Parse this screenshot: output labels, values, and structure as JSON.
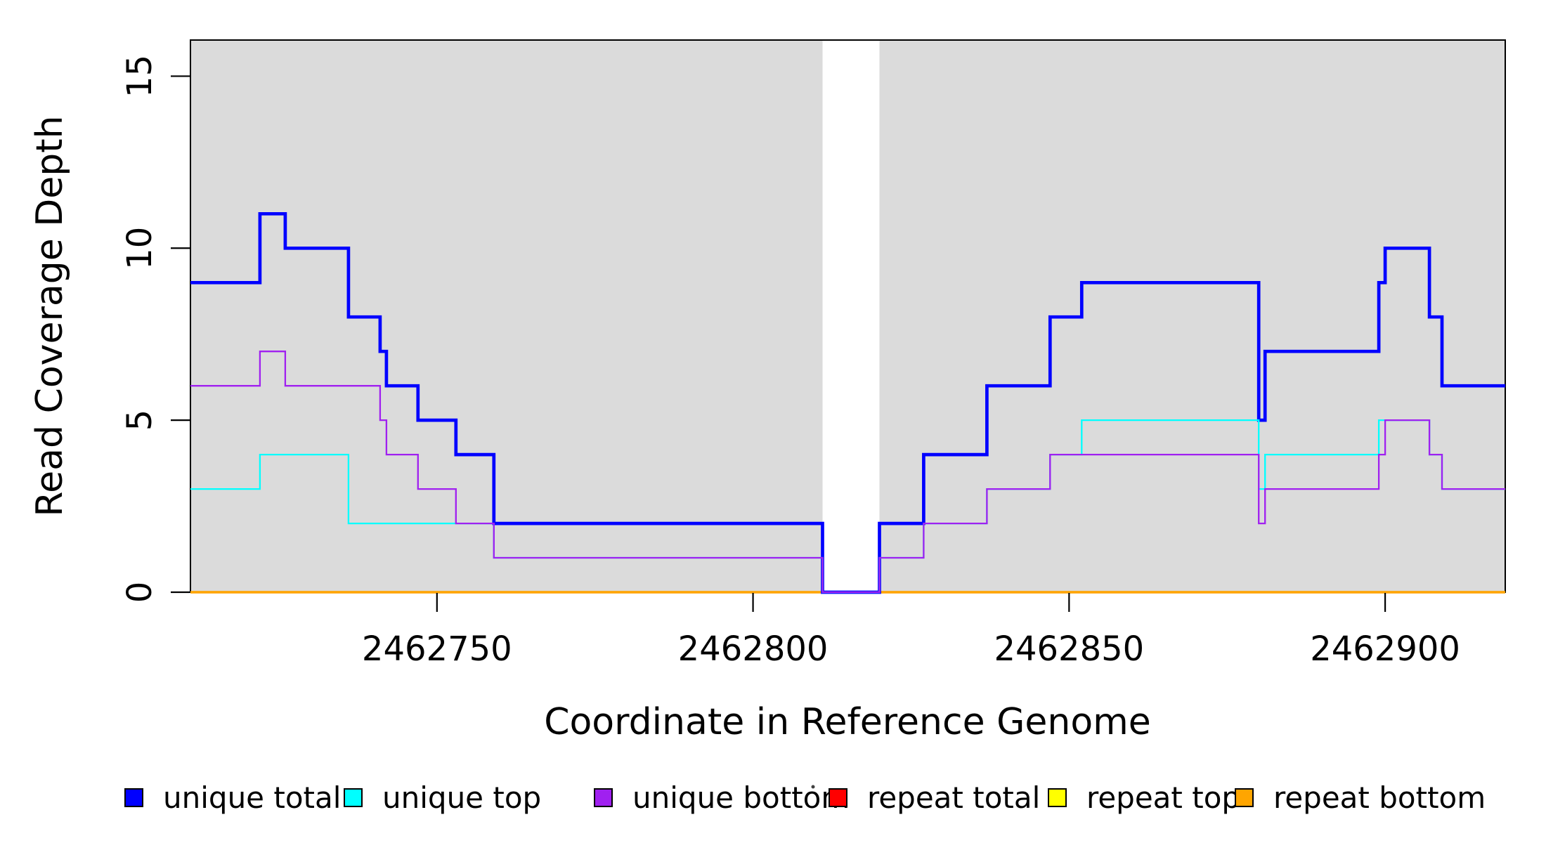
{
  "chart_data": {
    "type": "line",
    "subtype": "step",
    "title": "",
    "xlabel": "Coordinate in Reference Genome",
    "ylabel": "Read Coverage Depth",
    "xlim": [
      2462711,
      2462919
    ],
    "ylim": [
      0,
      16.05
    ],
    "xticks": [
      2462750,
      2462800,
      2462850,
      2462900
    ],
    "yticks": [
      0,
      5,
      10,
      15
    ],
    "grid": false,
    "legend_position": "bottom",
    "panel_background": "#dbdbdb",
    "no_data_gap": [
      2462811,
      2462820
    ],
    "draw_order": [
      "repeat total",
      "repeat top",
      "repeat bottom",
      "unique total",
      "unique top",
      "unique bottom"
    ],
    "series": [
      {
        "name": "unique total",
        "color": "#0000ff",
        "line_width": 4.7,
        "steps": [
          [
            2462711,
            9
          ],
          [
            2462722,
            11
          ],
          [
            2462726,
            10
          ],
          [
            2462736,
            8
          ],
          [
            2462741,
            7
          ],
          [
            2462742,
            6
          ],
          [
            2462747,
            5
          ],
          [
            2462753,
            4
          ],
          [
            2462759,
            2
          ],
          [
            2462811,
            0
          ],
          [
            2462820,
            2
          ],
          [
            2462827,
            4
          ],
          [
            2462837,
            6
          ],
          [
            2462847,
            8
          ],
          [
            2462852,
            9
          ],
          [
            2462880,
            5
          ],
          [
            2462881,
            7
          ],
          [
            2462899,
            9
          ],
          [
            2462900,
            10
          ],
          [
            2462907,
            8
          ],
          [
            2462909,
            6
          ]
        ]
      },
      {
        "name": "unique top",
        "color": "#00ffff",
        "line_width": 2.3,
        "steps": [
          [
            2462711,
            3
          ],
          [
            2462722,
            4
          ],
          [
            2462736,
            2
          ],
          [
            2462759,
            1
          ],
          [
            2462811,
            0
          ],
          [
            2462820,
            1
          ],
          [
            2462827,
            2
          ],
          [
            2462837,
            3
          ],
          [
            2462847,
            4
          ],
          [
            2462852,
            5
          ],
          [
            2462880,
            3
          ],
          [
            2462881,
            4
          ],
          [
            2462899,
            5
          ],
          [
            2462907,
            4
          ],
          [
            2462909,
            3
          ]
        ]
      },
      {
        "name": "unique bottom",
        "color": "#a020f0",
        "line_width": 2.3,
        "steps": [
          [
            2462711,
            6
          ],
          [
            2462722,
            7
          ],
          [
            2462726,
            6
          ],
          [
            2462741,
            5
          ],
          [
            2462742,
            4
          ],
          [
            2462747,
            3
          ],
          [
            2462753,
            2
          ],
          [
            2462759,
            1
          ],
          [
            2462811,
            0
          ],
          [
            2462820,
            1
          ],
          [
            2462827,
            2
          ],
          [
            2462837,
            3
          ],
          [
            2462847,
            4
          ],
          [
            2462880,
            2
          ],
          [
            2462881,
            3
          ],
          [
            2462899,
            4
          ],
          [
            2462900,
            5
          ],
          [
            2462907,
            4
          ],
          [
            2462909,
            3
          ]
        ]
      },
      {
        "name": "repeat total",
        "color": "#ff0000",
        "line_width": 3.2,
        "steps": [
          [
            2462711,
            0
          ]
        ]
      },
      {
        "name": "repeat top",
        "color": "#ffff00",
        "line_width": 3.2,
        "steps": [
          [
            2462711,
            0
          ]
        ]
      },
      {
        "name": "repeat bottom",
        "color": "#ffa500",
        "line_width": 3.2,
        "steps": [
          [
            2462711,
            0
          ]
        ]
      }
    ]
  },
  "axes": {
    "x_tick_labels": [
      "2462750",
      "2462800",
      "2462850",
      "2462900"
    ],
    "y_tick_labels": [
      "0",
      "5",
      "10",
      "15"
    ]
  },
  "legend": {
    "items": [
      {
        "label": "unique total",
        "color": "#0000ff"
      },
      {
        "label": "unique top",
        "color": "#00ffff"
      },
      {
        "label": "unique bottom",
        "color": "#a020f0"
      },
      {
        "label": "repeat total",
        "color": "#ff0000"
      },
      {
        "label": "repeat top",
        "color": "#ffff00"
      },
      {
        "label": "repeat bottom",
        "color": "#ffa500"
      }
    ]
  }
}
